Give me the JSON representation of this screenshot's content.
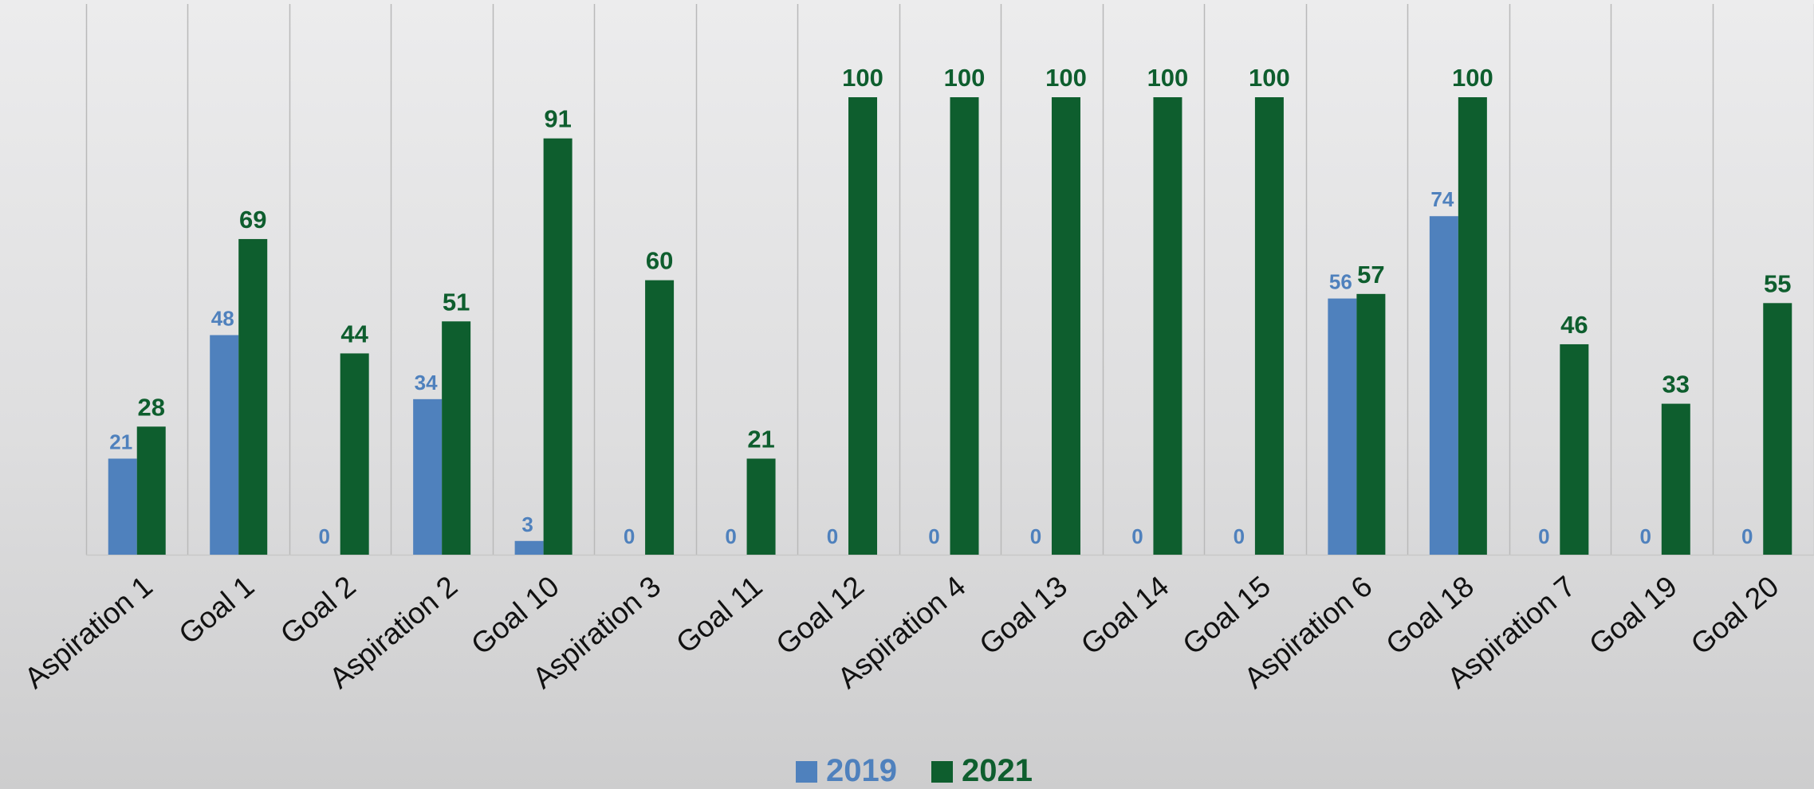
{
  "chart_data": {
    "type": "bar",
    "categories": [
      "Aspiration 1",
      "Goal 1",
      "Goal 2",
      "Aspiration 2",
      "Goal 10",
      "Aspiration 3",
      "Goal 11",
      "Goal 12",
      "Aspiration 4",
      "Goal 13",
      "Goal 14",
      "Goal 15",
      "Aspiration 6",
      "Goal 18",
      "Aspiration 7",
      "Goal 19",
      "Goal 20"
    ],
    "series": [
      {
        "name": "2019",
        "color": "#4f81bd",
        "values": [
          21,
          48,
          0,
          34,
          3,
          0,
          0,
          0,
          0,
          0,
          0,
          0,
          56,
          74,
          0,
          0,
          0
        ]
      },
      {
        "name": "2021",
        "color": "#0e5e2e",
        "values": [
          28,
          69,
          44,
          51,
          91,
          60,
          21,
          100,
          100,
          100,
          100,
          100,
          57,
          100,
          46,
          33,
          55
        ]
      }
    ],
    "title": "",
    "xlabel": "",
    "ylabel": "",
    "ylim": [
      0,
      120
    ],
    "grid": "vertical separators between categories",
    "data_labels": true,
    "legend_position": "bottom"
  }
}
